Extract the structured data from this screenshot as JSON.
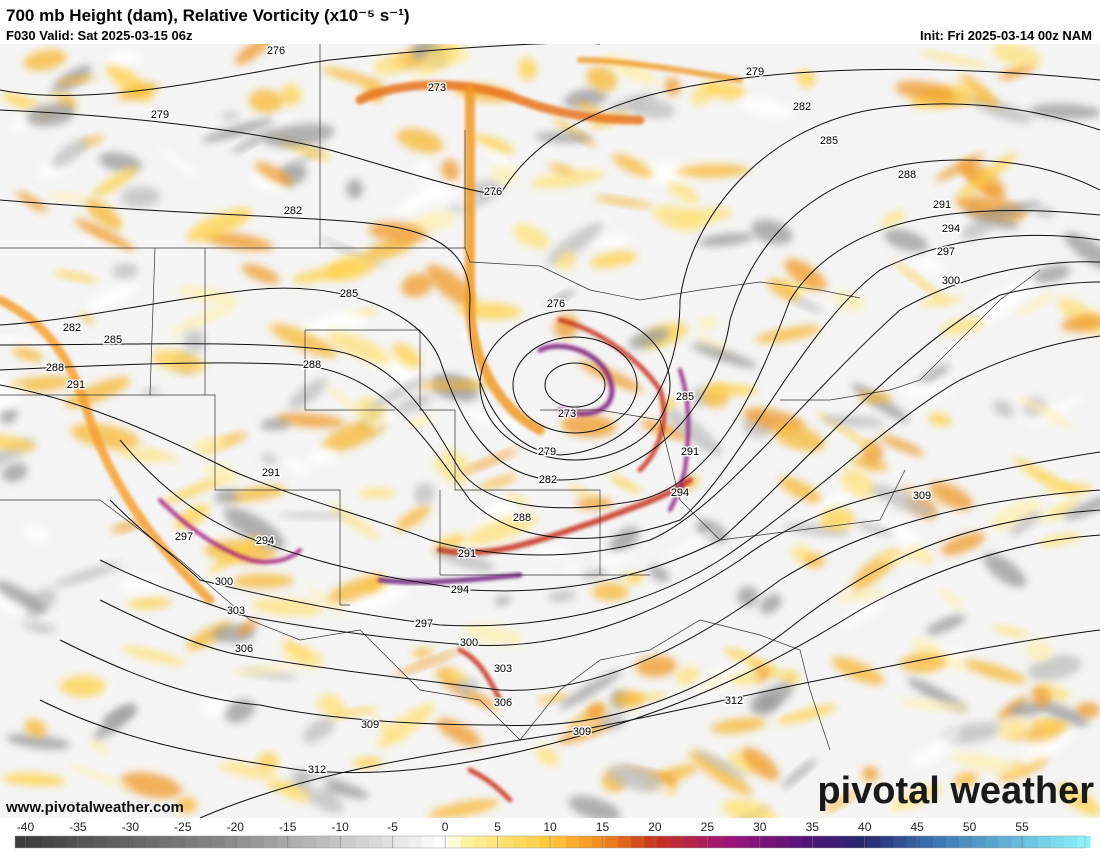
{
  "header": {
    "title": "700 mb Height (dam), Relative Vorticity (x10⁻⁵ s⁻¹)",
    "valid": "F030 Valid: Sat 2025-03-15 06z",
    "init": "Init: Fri 2025-03-14 00z NAM"
  },
  "contour_labels": [
    "276",
    "273",
    "279",
    "276",
    "282",
    "279",
    "282",
    "285",
    "288",
    "291",
    "294",
    "297",
    "300",
    "285",
    "282",
    "285",
    "288",
    "291",
    "288",
    "276",
    "273",
    "279",
    "282",
    "285",
    "291",
    "294",
    "291",
    "294",
    "297",
    "300",
    "303",
    "306",
    "288",
    "291",
    "294",
    "297",
    "300",
    "303",
    "306",
    "309",
    "309",
    "309",
    "312",
    "312"
  ],
  "footer": {
    "website": "www.pivotalweather.com",
    "logo": "pivotal weather"
  },
  "colorbar": {
    "range": [
      -41,
      61
    ],
    "ticks": [
      -40,
      -35,
      -30,
      -25,
      -20,
      -15,
      -10,
      -5,
      0,
      5,
      10,
      15,
      20,
      25,
      30,
      35,
      40,
      45,
      50,
      55
    ],
    "stops": [
      {
        "value": -41,
        "color": "#3a3a3a"
      },
      {
        "value": -20,
        "color": "#8c8c8c"
      },
      {
        "value": 0,
        "color": "#ffffff"
      },
      {
        "value": 2,
        "color": "#fff3a0"
      },
      {
        "value": 10,
        "color": "#ffc83c"
      },
      {
        "value": 15,
        "color": "#f08a1e"
      },
      {
        "value": 20,
        "color": "#c8321e"
      },
      {
        "value": 27,
        "color": "#a01478"
      },
      {
        "value": 35,
        "color": "#4b1478"
      },
      {
        "value": 40,
        "color": "#28286e"
      },
      {
        "value": 47,
        "color": "#3c78b4"
      },
      {
        "value": 61,
        "color": "#8cf0f8"
      }
    ]
  }
}
